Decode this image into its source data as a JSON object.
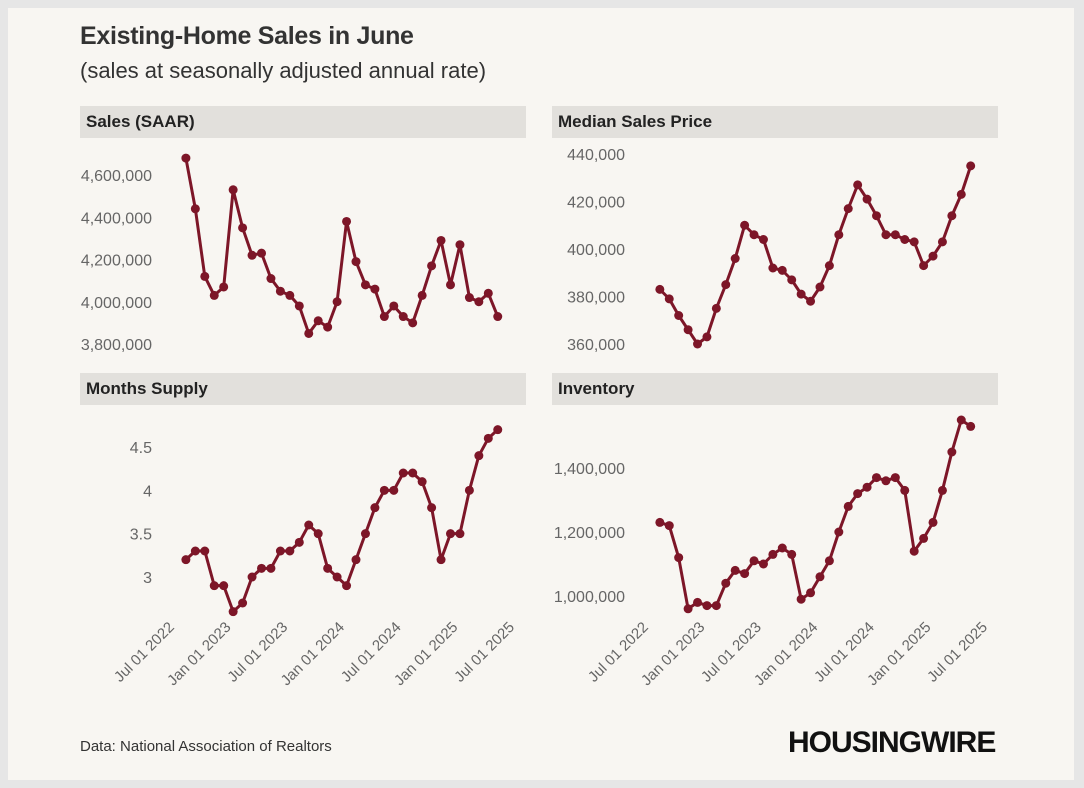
{
  "title": "Existing-Home Sales in June",
  "subtitle": "(sales at seasonally adjusted annual rate)",
  "source": "Data: National Association of Realtors",
  "logo": "HOUSINGWIRE",
  "colors": {
    "line": "#7d1628",
    "tick": "#666666",
    "header_bg": "#e2e0dc"
  },
  "chart_data": [
    {
      "type": "line",
      "title": "Sales (SAAR)",
      "yticks": [
        3800000,
        4000000,
        4200000,
        4400000,
        4600000
      ],
      "ytick_labels": [
        "3,800,000",
        "4,000,000",
        "4,200,000",
        "4,400,000",
        "4,600,000"
      ],
      "x": [
        "Sep 2022",
        "Oct 2022",
        "Nov 2022",
        "Dec 2022",
        "Jan 2023",
        "Feb 2023",
        "Mar 2023",
        "Apr 2023",
        "May 2023",
        "Jun 2023",
        "Jul 2023",
        "Aug 2023",
        "Sep 2023",
        "Oct 2023",
        "Nov 2023",
        "Dec 2023",
        "Jan 2024",
        "Feb 2024",
        "Mar 2024",
        "Apr 2024",
        "May 2024",
        "Jun 2024",
        "Jul 2024",
        "Aug 2024",
        "Sep 2024",
        "Oct 2024",
        "Nov 2024",
        "Dec 2024",
        "Jan 2025",
        "Feb 2025",
        "Mar 2025",
        "Apr 2025",
        "May 2025",
        "Jun 2025"
      ],
      "values": [
        4680000,
        4440000,
        4120000,
        4030000,
        4070000,
        4530000,
        4350000,
        4220000,
        4230000,
        4110000,
        4050000,
        4030000,
        3980000,
        3850000,
        3910000,
        3880000,
        4000000,
        4380000,
        4190000,
        4080000,
        4060000,
        3930000,
        3980000,
        3930000,
        3900000,
        4030000,
        4170000,
        4290000,
        4080000,
        4270000,
        4020000,
        4000000,
        4040000,
        3930000
      ]
    },
    {
      "type": "line",
      "title": "Median Sales Price",
      "yticks": [
        360000,
        380000,
        400000,
        420000,
        440000
      ],
      "ytick_labels": [
        "360,000",
        "380,000",
        "400,000",
        "420,000",
        "440,000"
      ],
      "values": [
        383000,
        379000,
        372000,
        366000,
        360000,
        363000,
        375000,
        385000,
        396000,
        410000,
        406000,
        404000,
        392000,
        391000,
        387000,
        381000,
        378000,
        384000,
        393000,
        406000,
        417000,
        427000,
        421000,
        414000,
        406000,
        406000,
        404000,
        403000,
        393000,
        397000,
        403000,
        414000,
        423000,
        435000
      ]
    },
    {
      "type": "line",
      "title": "Months Supply",
      "yticks": [
        3,
        3.5,
        4,
        4.5
      ],
      "ytick_labels": [
        "3",
        "3.5",
        "4",
        "4.5"
      ],
      "values": [
        3.2,
        3.3,
        3.3,
        2.9,
        2.9,
        2.6,
        2.7,
        3.0,
        3.1,
        3.1,
        3.3,
        3.3,
        3.4,
        3.6,
        3.5,
        3.1,
        3.0,
        2.9,
        3.2,
        3.5,
        3.8,
        4.0,
        4.0,
        4.2,
        4.2,
        4.1,
        3.8,
        3.2,
        3.5,
        3.5,
        4.0,
        4.4,
        4.6,
        4.7
      ]
    },
    {
      "type": "line",
      "title": "Inventory",
      "yticks": [
        1000000,
        1200000,
        1400000
      ],
      "ytick_labels": [
        "1,000,000",
        "1,200,000",
        "1,400,000"
      ],
      "values": [
        1230000,
        1220000,
        1120000,
        960000,
        980000,
        970000,
        970000,
        1040000,
        1080000,
        1070000,
        1110000,
        1100000,
        1130000,
        1150000,
        1130000,
        990000,
        1010000,
        1060000,
        1110000,
        1200000,
        1280000,
        1320000,
        1340000,
        1370000,
        1360000,
        1370000,
        1330000,
        1140000,
        1180000,
        1230000,
        1330000,
        1450000,
        1550000,
        1530000
      ]
    }
  ],
  "xticks": [
    "Jul 01 2022",
    "Jan 01 2023",
    "Jul 01 2023",
    "Jan 01 2024",
    "Jul 01 2024",
    "Jan 01 2025",
    "Jul 01 2025"
  ]
}
